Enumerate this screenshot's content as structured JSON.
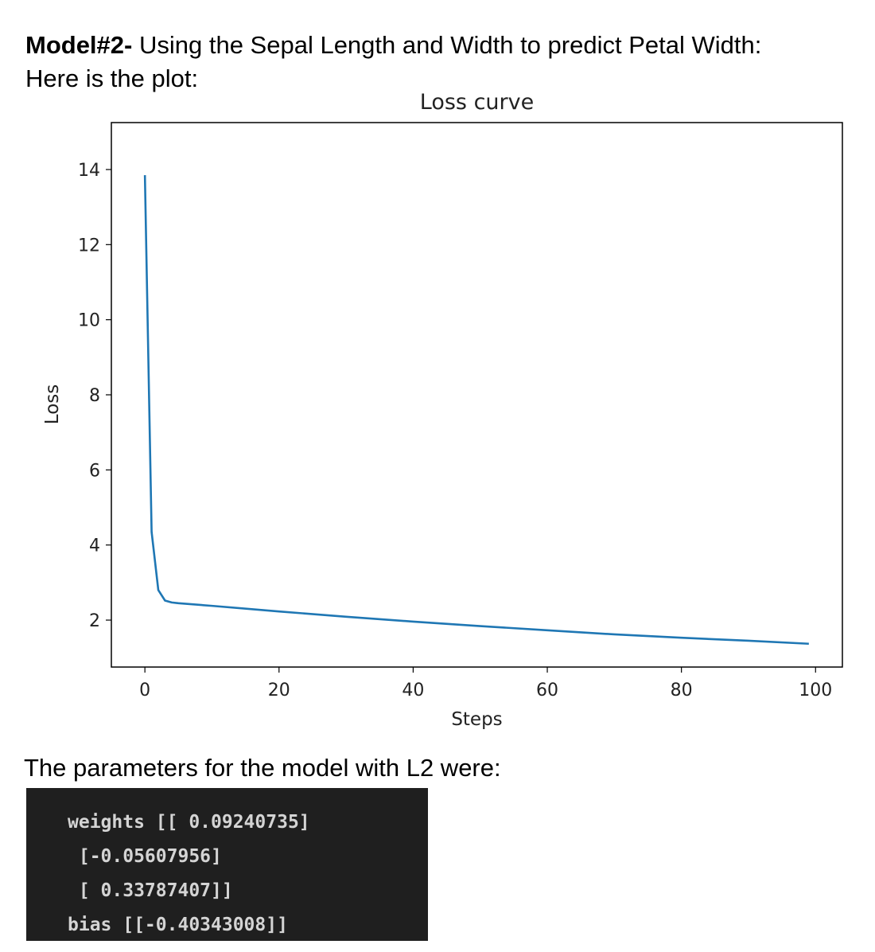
{
  "heading": {
    "bold": "Model#2-",
    "rest": " Using the Sepal Length and Width to predict Petal Width:",
    "line2": "Here is the plot:"
  },
  "chart_data": {
    "type": "line",
    "title": "Loss curve",
    "xlabel": "Steps",
    "ylabel": "Loss",
    "xlim": [
      -5,
      104
    ],
    "ylim": [
      0.75,
      15.25
    ],
    "xticks": [
      0,
      20,
      40,
      60,
      80,
      100
    ],
    "yticks": [
      2,
      4,
      6,
      8,
      10,
      12,
      14
    ],
    "grid": false,
    "color": "#1f77b4",
    "series": [
      {
        "x": [
          0,
          1,
          2,
          3,
          4,
          5,
          10,
          20,
          30,
          40,
          50,
          60,
          70,
          80,
          90,
          99
        ],
        "y": [
          13.85,
          4.35,
          2.8,
          2.52,
          2.47,
          2.45,
          2.38,
          2.23,
          2.09,
          1.96,
          1.84,
          1.73,
          1.62,
          1.53,
          1.45,
          1.37
        ]
      }
    ]
  },
  "params": {
    "label": "The parameters for the model with L2 were:",
    "lines": [
      "weights [[ 0.09240735]",
      " [-0.05607956]",
      " [ 0.33787407]]",
      "bias [[-0.40343008]]"
    ]
  }
}
